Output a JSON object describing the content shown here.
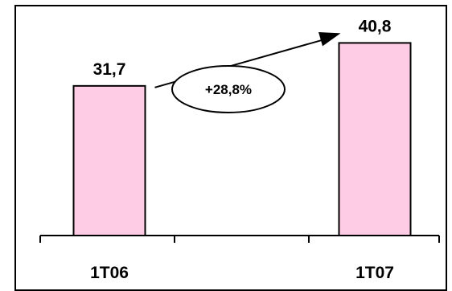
{
  "chart_data": {
    "type": "bar",
    "categories": [
      "1T06",
      "1T07"
    ],
    "values": [
      31.7,
      40.8
    ],
    "data_labels": [
      "31,7",
      "40,8"
    ],
    "annotations": [
      {
        "text": "+28,8%",
        "shape": "ellipse",
        "arrow": "from-first-bar-to-second-bar"
      }
    ],
    "title": "",
    "xlabel": "",
    "ylabel": "",
    "ylim": [
      0,
      47
    ],
    "grid": false,
    "legend": "none",
    "colors": {
      "bar_fill": "#ffcce6",
      "bar_stroke": "#000000",
      "frame": "#000000"
    }
  }
}
